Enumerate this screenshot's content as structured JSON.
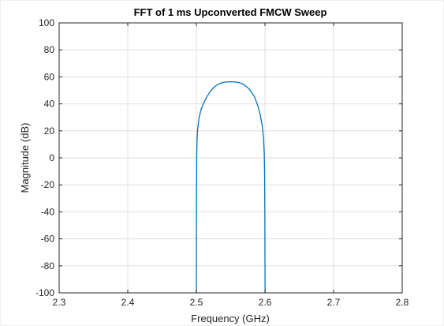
{
  "chart_data": {
    "type": "line",
    "title": "FFT of 1 ms Upconverted FMCW Sweep",
    "xlabel": "Frequency (GHz)",
    "ylabel": "Magnitude (dB)",
    "xlim": [
      2.3,
      2.8
    ],
    "ylim": [
      -100,
      100
    ],
    "xticks": [
      2.3,
      2.4,
      2.5,
      2.6,
      2.7,
      2.8
    ],
    "xtick_labels": [
      "2.3",
      "2.4",
      "2.5",
      "2.6",
      "2.7",
      "2.8"
    ],
    "yticks": [
      -100,
      -80,
      -60,
      -40,
      -20,
      0,
      20,
      40,
      60,
      80,
      100
    ],
    "ytick_labels": [
      "-100",
      "-80",
      "-60",
      "-40",
      "-20",
      "0",
      "20",
      "40",
      "60",
      "80",
      "100"
    ],
    "grid": true,
    "series": [
      {
        "color": "#0072bd",
        "x": [
          2.5,
          2.5001,
          2.5003,
          2.5005,
          2.501,
          2.502,
          2.504,
          2.507,
          2.51,
          2.515,
          2.52,
          2.525,
          2.53,
          2.535,
          2.54,
          2.545,
          2.55,
          2.555,
          2.56,
          2.565,
          2.57,
          2.575,
          2.58,
          2.585,
          2.59,
          2.593,
          2.596,
          2.598,
          2.599,
          2.5995,
          2.5998,
          2.6,
          2.6002
        ],
        "y": [
          -100,
          -60,
          -20,
          0,
          14,
          22,
          30,
          36,
          40,
          45,
          49,
          52,
          54,
          55.3,
          56,
          56.3,
          56.4,
          56.3,
          56,
          55.3,
          54,
          52,
          49,
          45,
          38,
          32,
          24,
          14,
          2,
          -15,
          -40,
          -80,
          -100
        ]
      }
    ]
  }
}
